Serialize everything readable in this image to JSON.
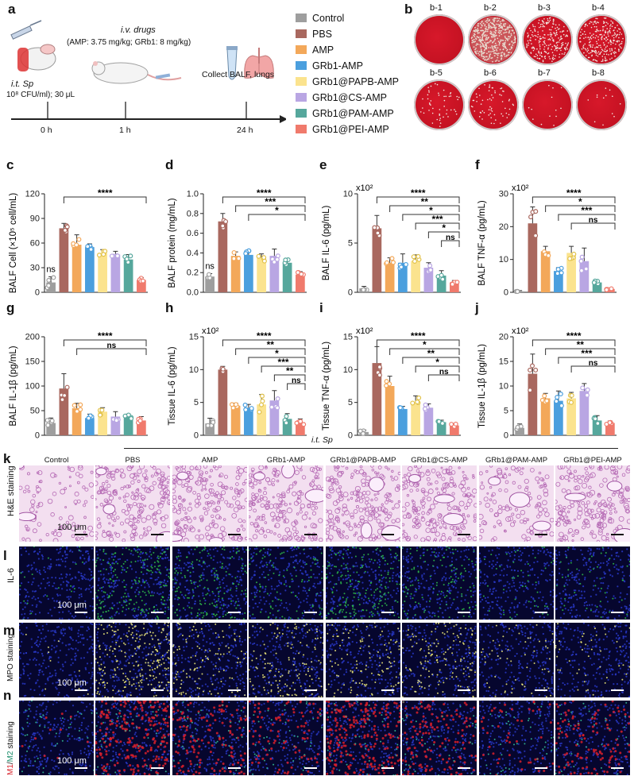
{
  "panel_labels": {
    "a": "a",
    "b": "b",
    "c": "c",
    "d": "d",
    "e": "e",
    "f": "f",
    "g": "g",
    "h": "h",
    "i": "i",
    "j": "j",
    "k": "k",
    "l": "l",
    "m": "m",
    "n": "n"
  },
  "timeline": {
    "drugs_title": "i.v. drugs",
    "drugs_dose": "(AMP: 3.75 mg/kg; GRb1: 8 mg/kg)",
    "infection_label": "i.t. Sp",
    "infection_dose": "10⁸ CFU/ml); 30 μL",
    "collect": "Collect BALF, lungs",
    "times": [
      "0 h",
      "1 h",
      "24 h"
    ]
  },
  "legend": [
    {
      "label": "Control",
      "color": "#9e9e9e"
    },
    {
      "label": "PBS",
      "color": "#a9685f"
    },
    {
      "label": "AMP",
      "color": "#f3a85a"
    },
    {
      "label": "GRb1-AMP",
      "color": "#4b9fde"
    },
    {
      "label": "GRb1@PAPB-AMP",
      "color": "#fbe38e"
    },
    {
      "label": "GRb1@CS-AMP",
      "color": "#b9a6e3"
    },
    {
      "label": "GRb1@PAM-AMP",
      "color": "#56a79c"
    },
    {
      "label": "GRb1@PEI-AMP",
      "color": "#f07a6c"
    }
  ],
  "plates": {
    "labels": [
      "b-1",
      "b-2",
      "b-3",
      "b-4",
      "b-5",
      "b-6",
      "b-7",
      "b-8"
    ],
    "colony_density": [
      0,
      1,
      0.55,
      0.6,
      0.12,
      0.15,
      0.03,
      0.03
    ]
  },
  "chart_data": [
    {
      "type": "bar",
      "panel": "c",
      "ylabel": "BALF Cell (×10⁵ cell/mL)",
      "ylim": [
        0,
        120
      ],
      "yticks": [
        "0",
        "30",
        "60",
        "90",
        "120"
      ],
      "multiplier": "",
      "categories": [
        "Control",
        "PBS",
        "AMP",
        "GRb1-AMP",
        "GRb1@PAPB-AMP",
        "GRb1@CS-AMP",
        "GRb1@PAM-AMP",
        "GRb1@PEI-AMP"
      ],
      "values": [
        12,
        78,
        58,
        55,
        48,
        46,
        40,
        15
      ],
      "errors": [
        7,
        6,
        12,
        4,
        4,
        4,
        6,
        3
      ],
      "annotations": [
        "ns",
        "****"
      ]
    },
    {
      "type": "bar",
      "panel": "d",
      "ylabel": "BALF protein (mg/mL)",
      "ylim": [
        0,
        1.0
      ],
      "yticks": [
        "0.0",
        "0.2",
        "0.4",
        "0.6",
        "0.8",
        "1.0"
      ],
      "multiplier": "",
      "categories": [
        "Control",
        "PBS",
        "AMP",
        "GRb1-AMP",
        "GRb1@PAPB-AMP",
        "GRb1@CS-AMP",
        "GRb1@PAM-AMP",
        "GRb1@PEI-AMP"
      ],
      "values": [
        0.16,
        0.72,
        0.37,
        0.38,
        0.35,
        0.37,
        0.3,
        0.18
      ],
      "errors": [
        0.03,
        0.08,
        0.04,
        0.05,
        0.04,
        0.07,
        0.04,
        0.03
      ],
      "annotations": [
        "ns",
        "****",
        "***",
        "*"
      ]
    },
    {
      "type": "bar",
      "panel": "e",
      "ylabel": "BALF IL-6 (pg/mL)",
      "ylim": [
        0,
        10
      ],
      "yticks": [
        "0",
        "5",
        "10"
      ],
      "multiplier": "x10²",
      "categories": [
        "Control",
        "PBS",
        "AMP",
        "GRb1-AMP",
        "GRb1@PAPB-AMP",
        "GRb1@CS-AMP",
        "GRb1@PAM-AMP",
        "GRb1@PEI-AMP"
      ],
      "values": [
        0.4,
        6.5,
        3.0,
        3.0,
        3.2,
        2.5,
        1.7,
        1.0
      ],
      "errors": [
        0.2,
        1.3,
        0.5,
        0.9,
        0.6,
        0.5,
        0.5,
        0.2
      ],
      "annotations": [
        "****",
        "**",
        "*",
        "***",
        "*",
        "ns"
      ]
    },
    {
      "type": "bar",
      "panel": "f",
      "ylabel": "BALF TNF-α (pg/mL)",
      "ylim": [
        0,
        30
      ],
      "yticks": [
        "0",
        "10",
        "20",
        "30"
      ],
      "multiplier": "x10²",
      "categories": [
        "Control",
        "PBS",
        "AMP",
        "GRb1-AMP",
        "GRb1@PAPB-AMP",
        "GRb1@CS-AMP",
        "GRb1@PAM-AMP",
        "GRb1@PEI-AMP"
      ],
      "values": [
        0.3,
        21,
        12.5,
        6.5,
        12,
        9.5,
        3,
        1
      ],
      "errors": [
        0.2,
        5,
        1.5,
        1,
        2,
        4,
        0.6,
        0.3
      ],
      "annotations": [
        "****",
        "*",
        "***",
        "ns"
      ]
    },
    {
      "type": "bar",
      "panel": "g",
      "ylabel": "BALF IL-1β (pg/mL)",
      "ylim": [
        0,
        200
      ],
      "yticks": [
        "0",
        "50",
        "100",
        "150",
        "200"
      ],
      "multiplier": "",
      "categories": [
        "Control",
        "PBS",
        "AMP",
        "GRb1-AMP",
        "GRb1@PAPB-AMP",
        "GRb1@CS-AMP",
        "GRb1@PAM-AMP",
        "GRb1@PEI-AMP"
      ],
      "values": [
        25,
        95,
        55,
        35,
        48,
        38,
        37,
        30
      ],
      "errors": [
        10,
        30,
        10,
        8,
        8,
        10,
        6,
        8
      ],
      "annotations": [
        "****",
        "ns"
      ]
    },
    {
      "type": "bar",
      "panel": "h",
      "ylabel": "Tissue IL-6 (pg/mL)",
      "ylim": [
        0,
        15
      ],
      "yticks": [
        "0",
        "5",
        "10",
        "15"
      ],
      "multiplier": "x10²",
      "categories": [
        "Control",
        "PBS",
        "AMP",
        "GRb1-AMP",
        "GRb1@PAPB-AMP",
        "GRb1@CS-AMP",
        "GRb1@PAM-AMP",
        "GRb1@PEI-AMP"
      ],
      "values": [
        1.8,
        10,
        4.5,
        4.2,
        4.7,
        5.3,
        2.5,
        2
      ],
      "errors": [
        0.8,
        0.5,
        0.4,
        0.5,
        1.5,
        1.5,
        0.8,
        0.5
      ],
      "annotations": [
        "****",
        "**",
        "*",
        "***",
        "**",
        "ns"
      ]
    },
    {
      "type": "bar",
      "panel": "i",
      "ylabel": "Tissue TNF-α (pg/mL)",
      "ylim": [
        0,
        15
      ],
      "yticks": [
        "0",
        "5",
        "10",
        "15"
      ],
      "multiplier": "x10²",
      "categories": [
        "Control",
        "PBS",
        "AMP",
        "GRb1-AMP",
        "GRb1@PAPB-AMP",
        "GRb1@CS-AMP",
        "GRb1@PAM-AMP",
        "GRb1@PEI-AMP"
      ],
      "values": [
        0.5,
        11,
        7.5,
        4,
        5,
        4.2,
        2,
        1.5
      ],
      "errors": [
        0.3,
        2.5,
        1.5,
        0.4,
        1,
        0.6,
        0.3,
        0.3
      ],
      "annotations": [
        "****",
        "*",
        "**",
        "*",
        "ns"
      ]
    },
    {
      "type": "bar",
      "panel": "j",
      "ylabel": "Tissue IL-1β (pg/mL)",
      "ylim": [
        0,
        20
      ],
      "yticks": [
        "0",
        "5",
        "10",
        "15",
        "20"
      ],
      "multiplier": "x10²",
      "categories": [
        "Control",
        "PBS",
        "AMP",
        "GRb1-AMP",
        "GRb1@PAPB-AMP",
        "GRb1@CS-AMP",
        "GRb1@PAM-AMP",
        "GRb1@PEI-AMP"
      ],
      "values": [
        1.5,
        12.5,
        7.5,
        7,
        7.5,
        9,
        3,
        2.5
      ],
      "errors": [
        0.8,
        4,
        1,
        2,
        1.2,
        1.5,
        1,
        0.4
      ],
      "annotations": [
        "****",
        "**",
        "***",
        "ns"
      ]
    }
  ],
  "micrographs": {
    "header_group": "i.t. Sp",
    "columns": [
      "Control",
      "PBS",
      "AMP",
      "GRb1-AMP",
      "GRb1@PAPB-AMP",
      "GRb1@CS-AMP",
      "GRb1@PAM-AMP",
      "GRb1@PEI-AMP"
    ],
    "rows": [
      {
        "label": "H&E staining",
        "scale": "100 μm",
        "kind": "he"
      },
      {
        "label": "IL-6",
        "scale": "100 μm",
        "kind": "il6"
      },
      {
        "label": "MPO staining",
        "scale": "100 μm",
        "kind": "mpo"
      },
      {
        "label_m1": "M1",
        "label_sep": "/",
        "label_m2": "M2",
        "label_rest": " staining",
        "scale": "100 μm",
        "kind": "m1m2"
      }
    ],
    "colors": {
      "m1": "#d8202a",
      "m2": "#1f8f6e"
    }
  }
}
